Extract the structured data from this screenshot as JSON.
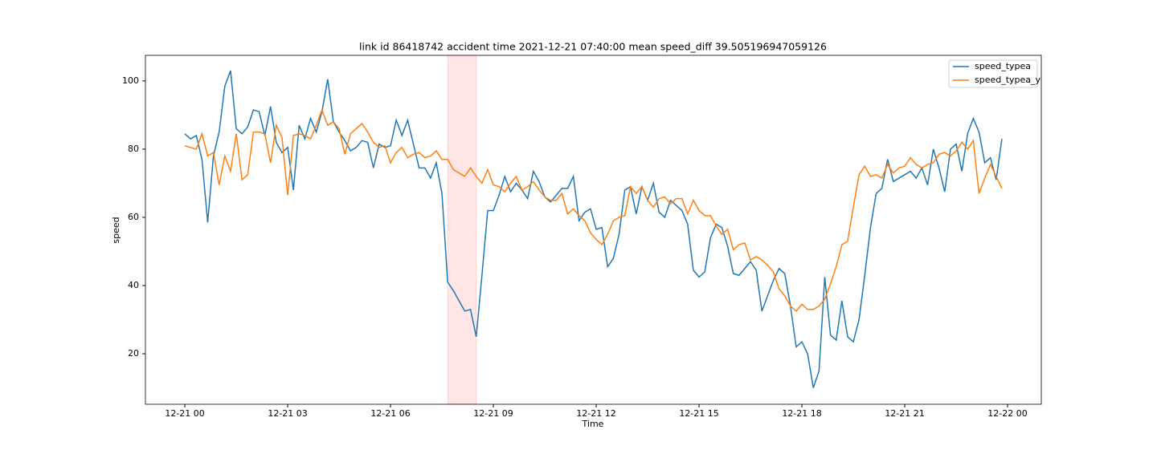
{
  "chart_data": {
    "type": "line",
    "title": "link id 86418742 accident time 2021-12-21 07:40:00 mean speed_diff 39.505196947059126",
    "x_label": "Time",
    "y_label": "speed",
    "x": [
      0,
      10,
      20,
      30,
      40,
      50,
      60,
      70,
      80,
      90,
      100,
      110,
      120,
      130,
      140,
      150,
      160,
      170,
      180,
      190,
      200,
      210,
      220,
      230,
      240,
      250,
      260,
      270,
      280,
      290,
      300,
      310,
      320,
      330,
      340,
      350,
      360,
      370,
      380,
      390,
      400,
      410,
      420,
      430,
      440,
      450,
      460,
      470,
      480,
      490,
      500,
      510,
      520,
      530,
      540,
      550,
      560,
      570,
      580,
      590,
      600,
      610,
      620,
      630,
      640,
      650,
      660,
      670,
      680,
      690,
      700,
      710,
      720,
      730,
      740,
      750,
      760,
      770,
      780,
      790,
      800,
      810,
      820,
      830,
      840,
      850,
      860,
      870,
      880,
      890,
      900,
      910,
      920,
      930,
      940,
      950,
      960,
      970,
      980,
      990,
      1000,
      1010,
      1020,
      1030,
      1040,
      1050,
      1060,
      1070,
      1080,
      1090,
      1100,
      1110,
      1120,
      1130,
      1140,
      1150,
      1160,
      1170,
      1180,
      1190,
      1200,
      1210,
      1220,
      1230,
      1240,
      1250,
      1260,
      1270,
      1280,
      1290,
      1300,
      1310,
      1320,
      1330,
      1340,
      1350,
      1360,
      1370,
      1380,
      1390,
      1400,
      1410,
      1420,
      1430
    ],
    "series": [
      {
        "name": "speed_typea",
        "color": "#1f77b4",
        "values": [
          84.5,
          83,
          84,
          77,
          58.5,
          78,
          85,
          98.5,
          103,
          86,
          84.5,
          86.5,
          91.5,
          91,
          84,
          92.5,
          82,
          79,
          80.5,
          68,
          87,
          83,
          89,
          85,
          91,
          100.5,
          88,
          85,
          82.5,
          79.5,
          80.5,
          82.5,
          82,
          74.5,
          81.5,
          80.5,
          81,
          88.5,
          84,
          88.5,
          81.5,
          74.5,
          74.5,
          71.5,
          76,
          67,
          41,
          38.5,
          35.5,
          32.5,
          33,
          25,
          43,
          62,
          62,
          66.5,
          72,
          67.5,
          70,
          68,
          65.5,
          73.5,
          70.5,
          66,
          64.5,
          66.5,
          68.5,
          68.5,
          72,
          59,
          61.5,
          62.5,
          56.5,
          57,
          45.5,
          48,
          55,
          68,
          69,
          61,
          69,
          65,
          70,
          61.5,
          60,
          65,
          63.5,
          62,
          58,
          44.5,
          42.5,
          44,
          54,
          58,
          57,
          51.5,
          43.5,
          43,
          45,
          47,
          44.5,
          32.5,
          37,
          41.5,
          45,
          43.5,
          34,
          22,
          23.5,
          20,
          10,
          15,
          42.5,
          25.5,
          24,
          35.5,
          25,
          23.5,
          30,
          43,
          57,
          67,
          68.5,
          77,
          70.5,
          71.5,
          72.5,
          73.5,
          71.5,
          74.5,
          69.5,
          80,
          74.5,
          67.5,
          80,
          81.5,
          73.5,
          84.5,
          89,
          85,
          76,
          77.5,
          71,
          83
        ]
      },
      {
        "name": "speed_typea_y",
        "color": "#ff7f0e",
        "values": [
          81,
          80.5,
          80,
          84.5,
          78,
          79,
          69.5,
          78,
          73.5,
          84.5,
          71,
          72.5,
          85,
          85,
          84.5,
          76,
          87,
          83.5,
          66.5,
          84,
          84.5,
          84,
          83,
          87,
          91.5,
          87,
          88,
          86,
          78.5,
          84.5,
          86,
          87.5,
          85,
          82,
          80.5,
          81,
          76,
          79,
          80.5,
          77.5,
          78.5,
          79,
          77.5,
          78,
          79.5,
          77,
          77,
          74,
          73,
          72,
          74.5,
          72,
          70,
          74,
          69.5,
          69,
          67.5,
          70,
          72,
          68,
          69,
          70.5,
          68,
          66,
          65,
          65,
          67,
          61,
          62.5,
          60.5,
          59,
          55.5,
          53.5,
          52,
          55,
          59,
          60,
          60.5,
          69,
          67,
          69,
          65,
          63,
          65.5,
          66,
          64,
          65.5,
          65.5,
          61,
          65,
          62,
          60.5,
          60.5,
          57.5,
          55,
          56.5,
          50.5,
          52,
          52.5,
          47.5,
          48.5,
          47.5,
          46,
          44,
          39,
          37,
          34,
          32.5,
          34.5,
          33,
          33,
          34,
          36,
          40.5,
          45.5,
          52,
          53,
          63,
          72.5,
          75,
          72,
          72.5,
          71.5,
          75.5,
          73,
          74.5,
          75,
          77.5,
          75.5,
          74.5,
          75.5,
          76,
          78.5,
          79,
          78,
          79.5,
          82,
          80,
          82.5,
          67,
          71.5,
          75.5,
          72,
          68.5
        ]
      }
    ],
    "xlim": [
      -69,
      1499
    ],
    "ylim": [
      5.2,
      107.5
    ],
    "xticks": [
      {
        "value": 0,
        "label": "12-21 00"
      },
      {
        "value": 180,
        "label": "12-21 03"
      },
      {
        "value": 360,
        "label": "12-21 06"
      },
      {
        "value": 540,
        "label": "12-21 09"
      },
      {
        "value": 720,
        "label": "12-21 12"
      },
      {
        "value": 900,
        "label": "12-21 15"
      },
      {
        "value": 1080,
        "label": "12-21 18"
      },
      {
        "value": 1260,
        "label": "12-21 21"
      },
      {
        "value": 1440,
        "label": "12-22 00"
      }
    ],
    "yticks": [
      20,
      40,
      60,
      80,
      100
    ],
    "span": [
      460,
      510
    ],
    "span_color": "#ffcccc",
    "grid": false,
    "legend": "upper right"
  }
}
